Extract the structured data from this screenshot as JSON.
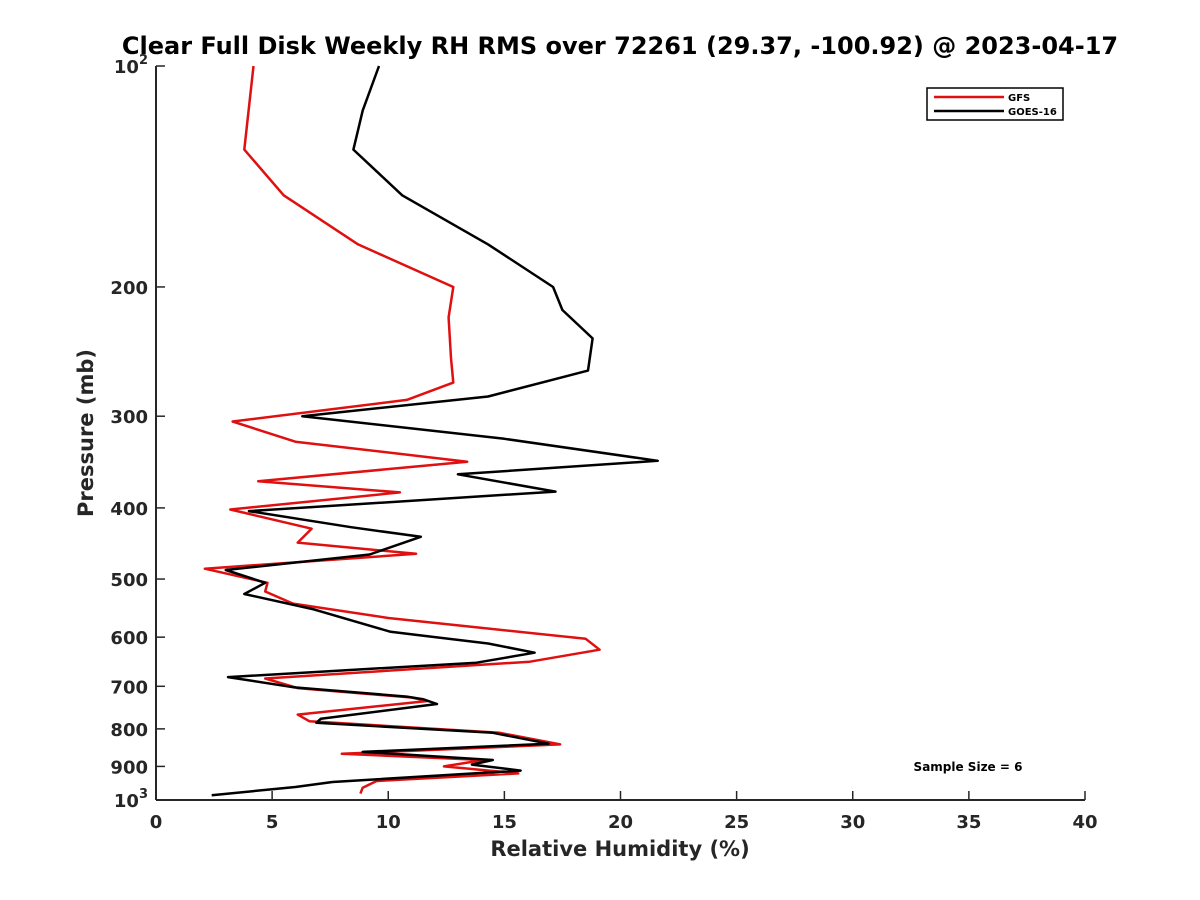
{
  "chart_data": {
    "type": "line",
    "title": "Clear Full Disk Weekly RH RMS over 72261 (29.37, -100.92) @ 2023-04-17",
    "xlabel": "Relative Humidity (%)",
    "ylabel": "Pressure (mb)",
    "xlim": [
      0,
      40
    ],
    "ylim": [
      1000,
      100
    ],
    "y_scale": "log",
    "y_reversed": true,
    "grid": false,
    "x_ticks": [
      0,
      5,
      10,
      15,
      20,
      25,
      30,
      35,
      40
    ],
    "x_tick_labels": [
      "0",
      "5",
      "10",
      "15",
      "20",
      "25",
      "30",
      "35",
      "40"
    ],
    "y_ticks": [
      100,
      200,
      300,
      400,
      500,
      600,
      700,
      800,
      900,
      1000
    ],
    "y_tick_labels": [
      {
        "text": "10",
        "sup": "2"
      },
      {
        "text": "200",
        "sup": ""
      },
      {
        "text": "300",
        "sup": ""
      },
      {
        "text": "400",
        "sup": ""
      },
      {
        "text": "500",
        "sup": ""
      },
      {
        "text": "600",
        "sup": ""
      },
      {
        "text": "700",
        "sup": ""
      },
      {
        "text": "800",
        "sup": ""
      },
      {
        "text": "900",
        "sup": ""
      },
      {
        "text": "10",
        "sup": "3"
      }
    ],
    "legend_position": "top-right",
    "annotation": "Sample Size = 6",
    "series": [
      {
        "name": "GFS",
        "color": "#e01010",
        "points": [
          [
            4.2,
            100
          ],
          [
            3.8,
            130
          ],
          [
            5.5,
            150
          ],
          [
            8.7,
            175
          ],
          [
            12.8,
            200
          ],
          [
            12.6,
            220
          ],
          [
            12.7,
            250
          ],
          [
            12.8,
            270
          ],
          [
            10.8,
            285
          ],
          [
            3.3,
            305
          ],
          [
            6.0,
            325
          ],
          [
            13.4,
            346
          ],
          [
            4.4,
            368
          ],
          [
            10.5,
            381
          ],
          [
            3.2,
            402
          ],
          [
            6.7,
            427
          ],
          [
            6.1,
            446
          ],
          [
            11.2,
            462
          ],
          [
            2.1,
            484
          ],
          [
            4.8,
            506
          ],
          [
            4.7,
            520
          ],
          [
            5.9,
            540
          ],
          [
            10.0,
            565
          ],
          [
            18.5,
            603
          ],
          [
            19.1,
            624
          ],
          [
            16.1,
            648
          ],
          [
            4.7,
            683
          ],
          [
            6.1,
            704
          ],
          [
            11.0,
            725
          ],
          [
            11.7,
            733
          ],
          [
            6.1,
            765
          ],
          [
            6.6,
            781
          ],
          [
            14.8,
            810
          ],
          [
            17.4,
            840
          ],
          [
            8.0,
            865
          ],
          [
            14.1,
            882
          ],
          [
            12.4,
            900
          ],
          [
            15.6,
            920
          ],
          [
            9.5,
            942
          ],
          [
            8.9,
            962
          ],
          [
            8.8,
            980
          ]
        ]
      },
      {
        "name": "GOES-16",
        "color": "#000000",
        "points": [
          [
            9.6,
            100
          ],
          [
            8.9,
            115
          ],
          [
            8.5,
            130
          ],
          [
            10.6,
            150
          ],
          [
            14.3,
            175
          ],
          [
            17.1,
            200
          ],
          [
            17.5,
            215
          ],
          [
            18.8,
            235
          ],
          [
            18.6,
            260
          ],
          [
            14.3,
            282
          ],
          [
            6.3,
            300
          ],
          [
            15.0,
            322
          ],
          [
            21.6,
            345
          ],
          [
            13.0,
            360
          ],
          [
            17.2,
            380
          ],
          [
            4.0,
            404
          ],
          [
            8.4,
            425
          ],
          [
            11.4,
            438
          ],
          [
            9.2,
            463
          ],
          [
            3.0,
            486
          ],
          [
            4.7,
            506
          ],
          [
            3.8,
            524
          ],
          [
            6.8,
            550
          ],
          [
            10.1,
            590
          ],
          [
            14.3,
            612
          ],
          [
            16.3,
            630
          ],
          [
            13.8,
            650
          ],
          [
            3.1,
            680
          ],
          [
            5.9,
            702
          ],
          [
            10.8,
            723
          ],
          [
            11.5,
            729
          ],
          [
            12.1,
            740
          ],
          [
            7.1,
            775
          ],
          [
            6.9,
            785
          ],
          [
            14.5,
            810
          ],
          [
            16.9,
            838
          ],
          [
            8.9,
            860
          ],
          [
            14.5,
            882
          ],
          [
            13.6,
            895
          ],
          [
            15.7,
            912
          ],
          [
            7.6,
            945
          ],
          [
            6.0,
            960
          ],
          [
            2.4,
            985
          ]
        ]
      }
    ]
  }
}
